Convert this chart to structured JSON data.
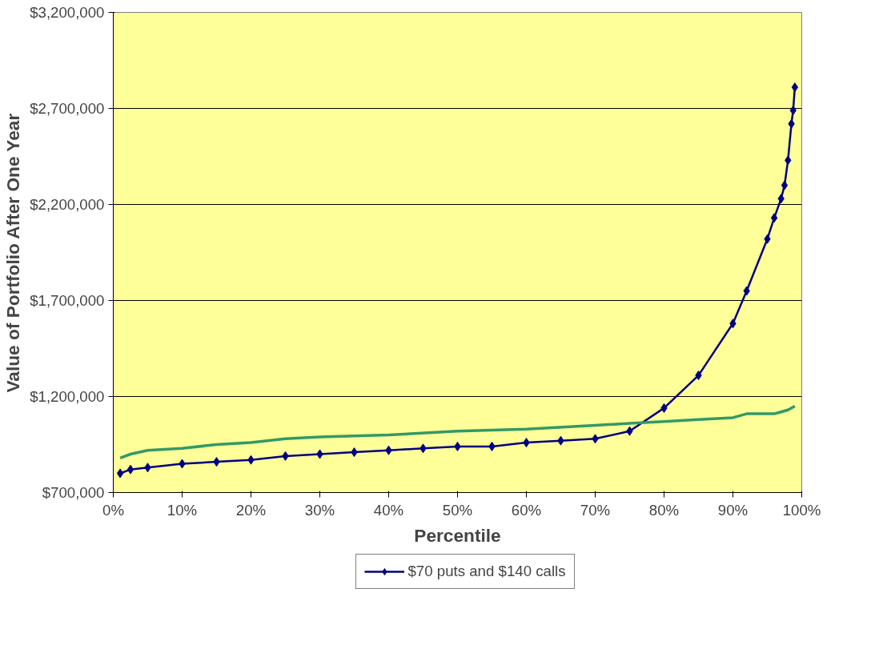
{
  "chart_data": {
    "type": "line",
    "xlabel": "Percentile",
    "ylabel": "Value of Portfolio After One Year",
    "xlim": [
      0,
      100
    ],
    "ylim": [
      700000,
      3200000
    ],
    "xticks": [
      {
        "value": 0,
        "label": "0%"
      },
      {
        "value": 10,
        "label": "10%"
      },
      {
        "value": 20,
        "label": "20%"
      },
      {
        "value": 30,
        "label": "30%"
      },
      {
        "value": 40,
        "label": "40%"
      },
      {
        "value": 50,
        "label": "50%"
      },
      {
        "value": 60,
        "label": "60%"
      },
      {
        "value": 70,
        "label": "70%"
      },
      {
        "value": 80,
        "label": "80%"
      },
      {
        "value": 90,
        "label": "90%"
      },
      {
        "value": 100,
        "label": "100%"
      }
    ],
    "yticks": [
      {
        "value": 700000,
        "label": "$700,000"
      },
      {
        "value": 1200000,
        "label": "$1,200,000"
      },
      {
        "value": 1700000,
        "label": "$1,700,000"
      },
      {
        "value": 2200000,
        "label": "$2,200,000"
      },
      {
        "value": 2700000,
        "label": "$2,700,000"
      },
      {
        "value": 3200000,
        "label": "$3,200,000"
      }
    ],
    "grid": "y",
    "legend": "bottom",
    "series": [
      {
        "name": "$70 puts and $140 calls",
        "color": "#000080",
        "marker": "diamond",
        "x": [
          1,
          2.5,
          5,
          10,
          15,
          20,
          25,
          30,
          35,
          40,
          45,
          50,
          55,
          60,
          65,
          70,
          75,
          80,
          85,
          90,
          92,
          95,
          96,
          97,
          97.5,
          98,
          98.5,
          98.75,
          99
        ],
        "values": [
          800000,
          820000,
          830000,
          850000,
          860000,
          870000,
          890000,
          900000,
          910000,
          920000,
          930000,
          940000,
          940000,
          960000,
          970000,
          980000,
          1020000,
          1140000,
          1310000,
          1580000,
          1750000,
          2020000,
          2130000,
          2230000,
          2300000,
          2430000,
          2620000,
          2690000,
          2810000
        ]
      },
      {
        "color": "#339966",
        "marker": "none",
        "x": [
          1,
          2.5,
          5,
          10,
          15,
          20,
          25,
          30,
          40,
          50,
          60,
          70,
          75,
          80,
          85,
          90,
          92,
          95,
          96,
          97,
          98,
          99
        ],
        "values": [
          880000,
          900000,
          920000,
          930000,
          950000,
          960000,
          980000,
          990000,
          1000000,
          1020000,
          1030000,
          1050000,
          1060000,
          1070000,
          1080000,
          1090000,
          1110000,
          1110000,
          1110000,
          1120000,
          1130000,
          1150000
        ]
      }
    ]
  }
}
